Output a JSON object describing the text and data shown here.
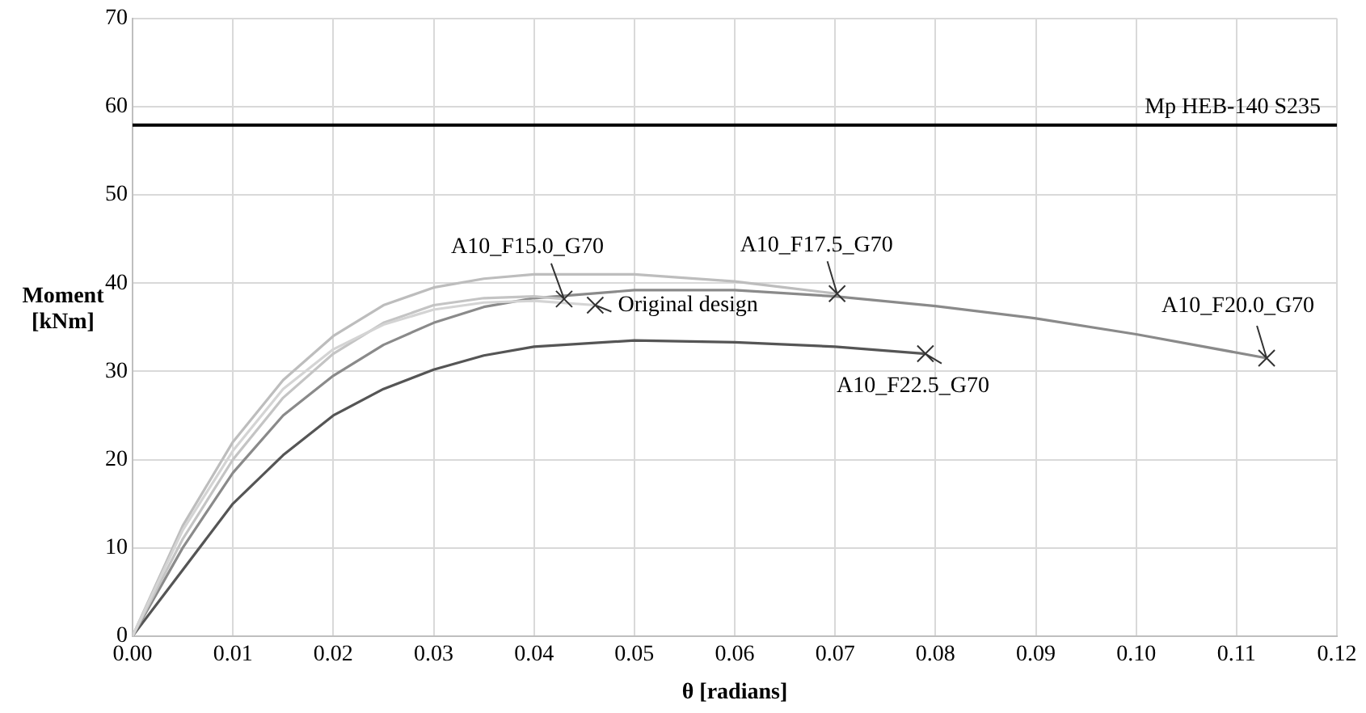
{
  "chart_data": {
    "type": "line",
    "xlabel": "θ [radians]",
    "ylabel": "Moment [kNm]",
    "xlim": [
      0,
      0.12
    ],
    "xticks": [
      {
        "value": 0,
        "label": "0.00"
      },
      {
        "value": 0.01,
        "label": "0.01"
      },
      {
        "value": 0.02,
        "label": "0.02"
      },
      {
        "value": 0.03,
        "label": "0.03"
      },
      {
        "value": 0.04,
        "label": "0.04"
      },
      {
        "value": 0.05,
        "label": "0.05"
      },
      {
        "value": 0.06,
        "label": "0.06"
      },
      {
        "value": 0.07,
        "label": "0.07"
      },
      {
        "value": 0.08,
        "label": "0.08"
      },
      {
        "value": 0.09,
        "label": "0.09"
      },
      {
        "value": 0.1,
        "label": "0.10"
      },
      {
        "value": 0.11,
        "label": "0.11"
      },
      {
        "value": 0.12,
        "label": "0.12"
      }
    ],
    "ylim": [
      0,
      70
    ],
    "yticks": [
      0,
      10,
      20,
      30,
      40,
      50,
      60,
      70
    ],
    "grid": true,
    "line_style": "solid",
    "annotations": [
      {
        "text": "Original design",
        "x": 0.0461,
        "y": 37.5
      },
      {
        "text": "A10_F15.0_G70",
        "x": 0.043,
        "y": 38.2
      },
      {
        "text": "A10_F17.5_G70",
        "x": 0.0702,
        "y": 38.8
      },
      {
        "text": "A10_F20.0_G70",
        "x": 0.113,
        "y": 31.5
      },
      {
        "text": "A10_F22.5_G70",
        "x": 0.079,
        "y": 32
      }
    ],
    "ref_lines": [
      {
        "axis": "y",
        "value": 57.9,
        "label": "Mp HEB-140 S235",
        "color": "#000000"
      }
    ],
    "series": [
      {
        "color": "#d4d4d4",
        "x": [
          0,
          0.005,
          0.01,
          0.015,
          0.02,
          0.025,
          0.03,
          0.035,
          0.04,
          0.0461
        ],
        "values": [
          0,
          12,
          21,
          28,
          32.5,
          35.3,
          37,
          37.8,
          38,
          37.5
        ]
      },
      {
        "color": "#c4c4c4",
        "x": [
          0,
          0.005,
          0.01,
          0.015,
          0.02,
          0.025,
          0.03,
          0.035,
          0.04,
          0.043
        ],
        "values": [
          0,
          11,
          20,
          27,
          32,
          35.5,
          37.5,
          38.3,
          38.5,
          38.2
        ]
      },
      {
        "color": "#bdbdbd",
        "x": [
          0,
          0.005,
          0.01,
          0.015,
          0.02,
          0.025,
          0.03,
          0.035,
          0.04,
          0.05,
          0.06,
          0.065,
          0.0702
        ],
        "values": [
          0,
          12.5,
          22,
          29,
          34,
          37.5,
          39.5,
          40.5,
          41,
          41,
          40.2,
          39.5,
          38.8
        ]
      },
      {
        "color": "#8a8a8a",
        "x": [
          0,
          0.005,
          0.01,
          0.015,
          0.02,
          0.025,
          0.03,
          0.035,
          0.04,
          0.05,
          0.06,
          0.07,
          0.08,
          0.09,
          0.1,
          0.113
        ],
        "values": [
          0,
          10,
          18.5,
          25,
          29.5,
          33,
          35.5,
          37.3,
          38.3,
          39.2,
          39.2,
          38.5,
          37.4,
          36,
          34.2,
          31.5
        ]
      },
      {
        "color": "#555555",
        "x": [
          0,
          0.005,
          0.01,
          0.015,
          0.02,
          0.025,
          0.03,
          0.035,
          0.04,
          0.05,
          0.06,
          0.07,
          0.079
        ],
        "values": [
          0,
          7.5,
          15,
          20.5,
          25,
          28,
          30.2,
          31.8,
          32.8,
          33.5,
          33.3,
          32.8,
          32
        ]
      }
    ]
  }
}
